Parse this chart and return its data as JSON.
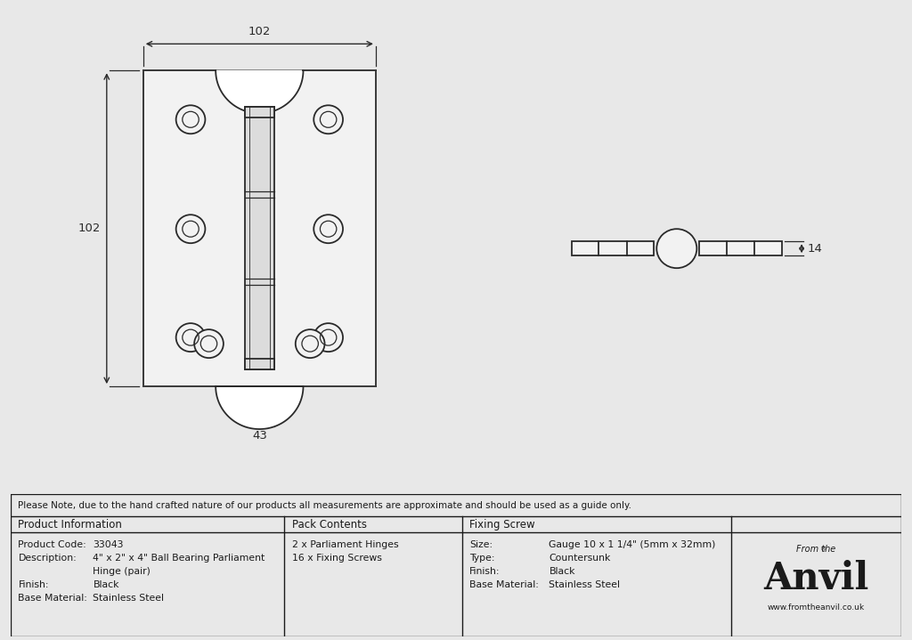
{
  "bg_color": "#e8e8e8",
  "drawing_bg": "#ffffff",
  "line_color": "#2a2a2a",
  "dim_color": "#2a2a2a",
  "note_text": "Please Note, due to the hand crafted nature of our products all measurements are approximate and should be used as a guide only.",
  "product_info": {
    "col1_header": "Product Information",
    "col2_header": "Pack Contents",
    "col3_header": "Fixing Screw",
    "product_code_label": "Product Code:",
    "product_code_value": "33043",
    "description_label": "Description:",
    "description_value": "4\" x 2\" x 4\" Ball Bearing Parliament",
    "description_value2": "Hinge (pair)",
    "finish_label": "Finish:",
    "finish_value": "Black",
    "base_label": "Base Material:",
    "base_value": "Stainless Steel",
    "pack1": "2 x Parliament Hinges",
    "pack2": "16 x Fixing Screws",
    "size_label": "Size:",
    "size_value": "Gauge 10 x 1 1/4\" (5mm x 32mm)",
    "type_label": "Type:",
    "type_value": "Countersunk",
    "finish2_label": "Finish:",
    "finish2_value": "Black",
    "base2_label": "Base Material:",
    "base2_value": "Stainless Steel"
  }
}
